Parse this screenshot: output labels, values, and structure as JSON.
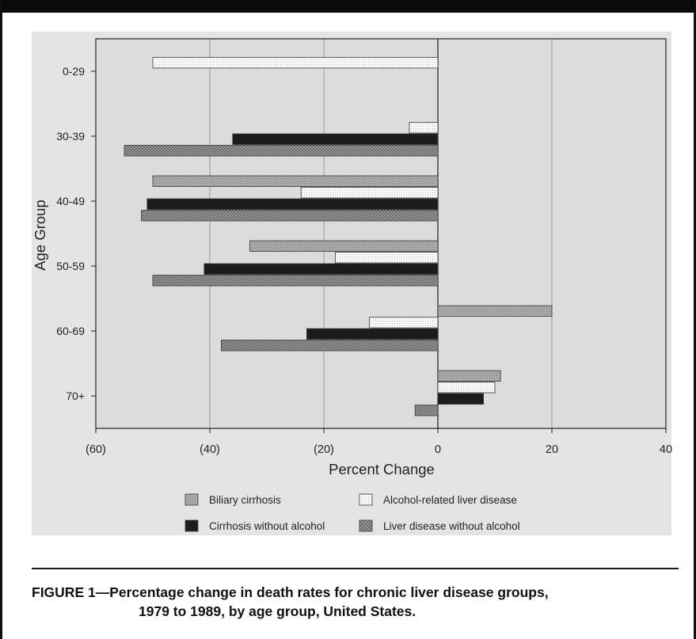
{
  "chart_data": {
    "type": "bar",
    "orientation": "horizontal",
    "title": "",
    "xlabel": "Percent Change",
    "ylabel": "Age Group",
    "xlim": [
      -60,
      40
    ],
    "x_ticks": [
      -60,
      -40,
      -20,
      0,
      20,
      40
    ],
    "x_tick_labels": [
      "(60)",
      "(40)",
      "(20)",
      "0",
      "20",
      "40"
    ],
    "grid": true,
    "legend_position": "bottom",
    "categories": [
      "0-29",
      "30-39",
      "40-49",
      "50-59",
      "60-69",
      "70+"
    ],
    "series": [
      {
        "name": "Biliary cirrhosis",
        "color": "#9c9c9c",
        "pattern": "fine-dots",
        "values": [
          null,
          null,
          -50,
          -33,
          20,
          11
        ]
      },
      {
        "name": "Alcohol-related liver disease",
        "color": "#f0f0f0",
        "pattern": "light-dots",
        "values": [
          -50,
          -5,
          -24,
          -18,
          -12,
          10
        ]
      },
      {
        "name": "Cirrhosis without alcohol",
        "color": "#1c1c1c",
        "pattern": "solid",
        "values": [
          null,
          -36,
          -51,
          -41,
          -23,
          8
        ]
      },
      {
        "name": "Liver disease without alcohol",
        "color": "#8a8a8a",
        "pattern": "crosshatch",
        "values": [
          null,
          -55,
          -52,
          -50,
          -38,
          -4
        ]
      }
    ]
  },
  "caption": {
    "line1": "FIGURE 1—Percentage change in death rates for chronic liver disease groups,",
    "line2": "1979 to 1989, by age group, United States."
  }
}
